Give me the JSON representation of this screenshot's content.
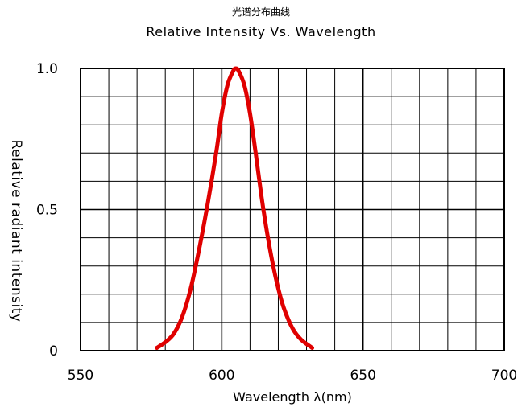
{
  "chart_data": {
    "type": "line",
    "title_cn": "光谱分布曲线",
    "title": "Relative Intensity Vs. Wavelength",
    "xlabel": "Wavelength λ(nm)",
    "ylabel": "Relative radiant intensity",
    "xlim": [
      550,
      700
    ],
    "ylim": [
      0,
      1.0
    ],
    "xticks": [
      "550",
      "600",
      "650",
      "700"
    ],
    "yticks": [
      "0",
      "0.5",
      "1.0"
    ],
    "grid": true,
    "series": [
      {
        "color": "#e00000",
        "points": [
          [
            577,
            0.01
          ],
          [
            580,
            0.03
          ],
          [
            583,
            0.06
          ],
          [
            586,
            0.12
          ],
          [
            589,
            0.22
          ],
          [
            592,
            0.36
          ],
          [
            595,
            0.52
          ],
          [
            598,
            0.7
          ],
          [
            600,
            0.84
          ],
          [
            602,
            0.94
          ],
          [
            604,
            0.99
          ],
          [
            605,
            1.0
          ],
          [
            606,
            0.99
          ],
          [
            608,
            0.94
          ],
          [
            610,
            0.84
          ],
          [
            612,
            0.7
          ],
          [
            614,
            0.55
          ],
          [
            616,
            0.42
          ],
          [
            618,
            0.31
          ],
          [
            620,
            0.22
          ],
          [
            622,
            0.15
          ],
          [
            625,
            0.08
          ],
          [
            628,
            0.04
          ],
          [
            632,
            0.01
          ]
        ]
      }
    ]
  }
}
